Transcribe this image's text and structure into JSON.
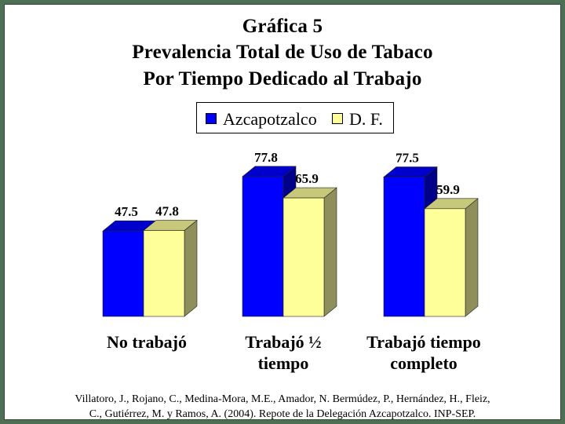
{
  "title_lines": [
    "Gráfica 5",
    "Prevalencia Total de Uso de Tabaco",
    "Por Tiempo Dedicado al Trabajo"
  ],
  "source_lines": [
    "Villatoro, J., Rojano, C., Medina-Mora, M.E., Amador, N. Bermúdez, P., Hernández, H., Fleiz,",
    "C., Gutiérrez, M. y Ramos, A. (2004). Repote de la Delegación Azcapotzalco. INP-SEP."
  ],
  "colors": {
    "azcapotzalco": "#0000ff",
    "df": "#ffff99",
    "background": "#4f6f55"
  },
  "chart_data": {
    "type": "bar",
    "title": "Gráfica 5 Prevalencia Total de Uso de Tabaco Por Tiempo Dedicado al Trabajo",
    "categories": [
      [
        "No trabajó"
      ],
      [
        "Trabajó ½",
        "tiempo"
      ],
      [
        "Trabajó tiempo",
        "completo"
      ]
    ],
    "series": [
      {
        "name": "Azcapotzalco",
        "values": [
          47.5,
          77.8,
          77.5
        ],
        "labels": [
          "47.5",
          "77.8",
          "77.5"
        ]
      },
      {
        "name": "D. F.",
        "values": [
          47.8,
          65.9,
          59.9
        ],
        "labels": [
          "47.8",
          "65.9",
          "59.9"
        ]
      }
    ],
    "data_labels": true,
    "grid": false,
    "legend_position": "top",
    "style": "3d"
  }
}
